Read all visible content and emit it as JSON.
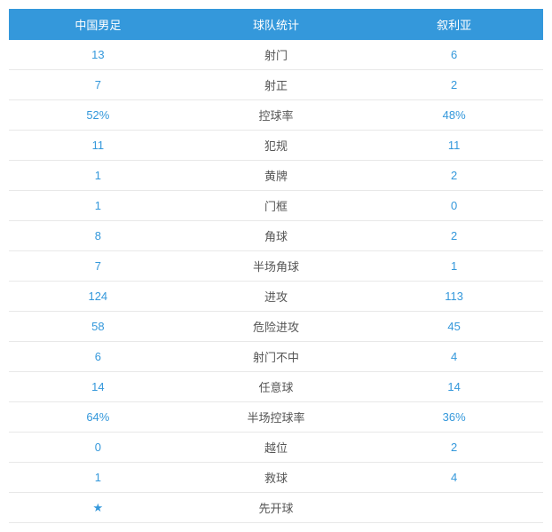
{
  "table": {
    "header_bg": "#3498db",
    "header_text_color": "#ffffff",
    "value_color": "#3498db",
    "label_color": "#555555",
    "row_border_color": "#e8e8e8",
    "columns": [
      "中国男足",
      "球队统计",
      "叙利亚"
    ],
    "rows": [
      {
        "left": "13",
        "label": "射门",
        "right": "6"
      },
      {
        "left": "7",
        "label": "射正",
        "right": "2"
      },
      {
        "left": "52%",
        "label": "控球率",
        "right": "48%"
      },
      {
        "left": "11",
        "label": "犯规",
        "right": "11"
      },
      {
        "left": "1",
        "label": "黄牌",
        "right": "2"
      },
      {
        "left": "1",
        "label": "门框",
        "right": "0"
      },
      {
        "left": "8",
        "label": "角球",
        "right": "2"
      },
      {
        "left": "7",
        "label": "半场角球",
        "right": "1"
      },
      {
        "left": "124",
        "label": "进攻",
        "right": "113"
      },
      {
        "left": "58",
        "label": "危险进攻",
        "right": "45"
      },
      {
        "left": "6",
        "label": "射门不中",
        "right": "4"
      },
      {
        "left": "14",
        "label": "任意球",
        "right": "14"
      },
      {
        "left": "64%",
        "label": "半场控球率",
        "right": "36%"
      },
      {
        "left": "0",
        "label": "越位",
        "right": "2"
      },
      {
        "left": "1",
        "label": "救球",
        "right": "4"
      },
      {
        "left": "★",
        "label": "先开球",
        "right": ""
      }
    ]
  }
}
